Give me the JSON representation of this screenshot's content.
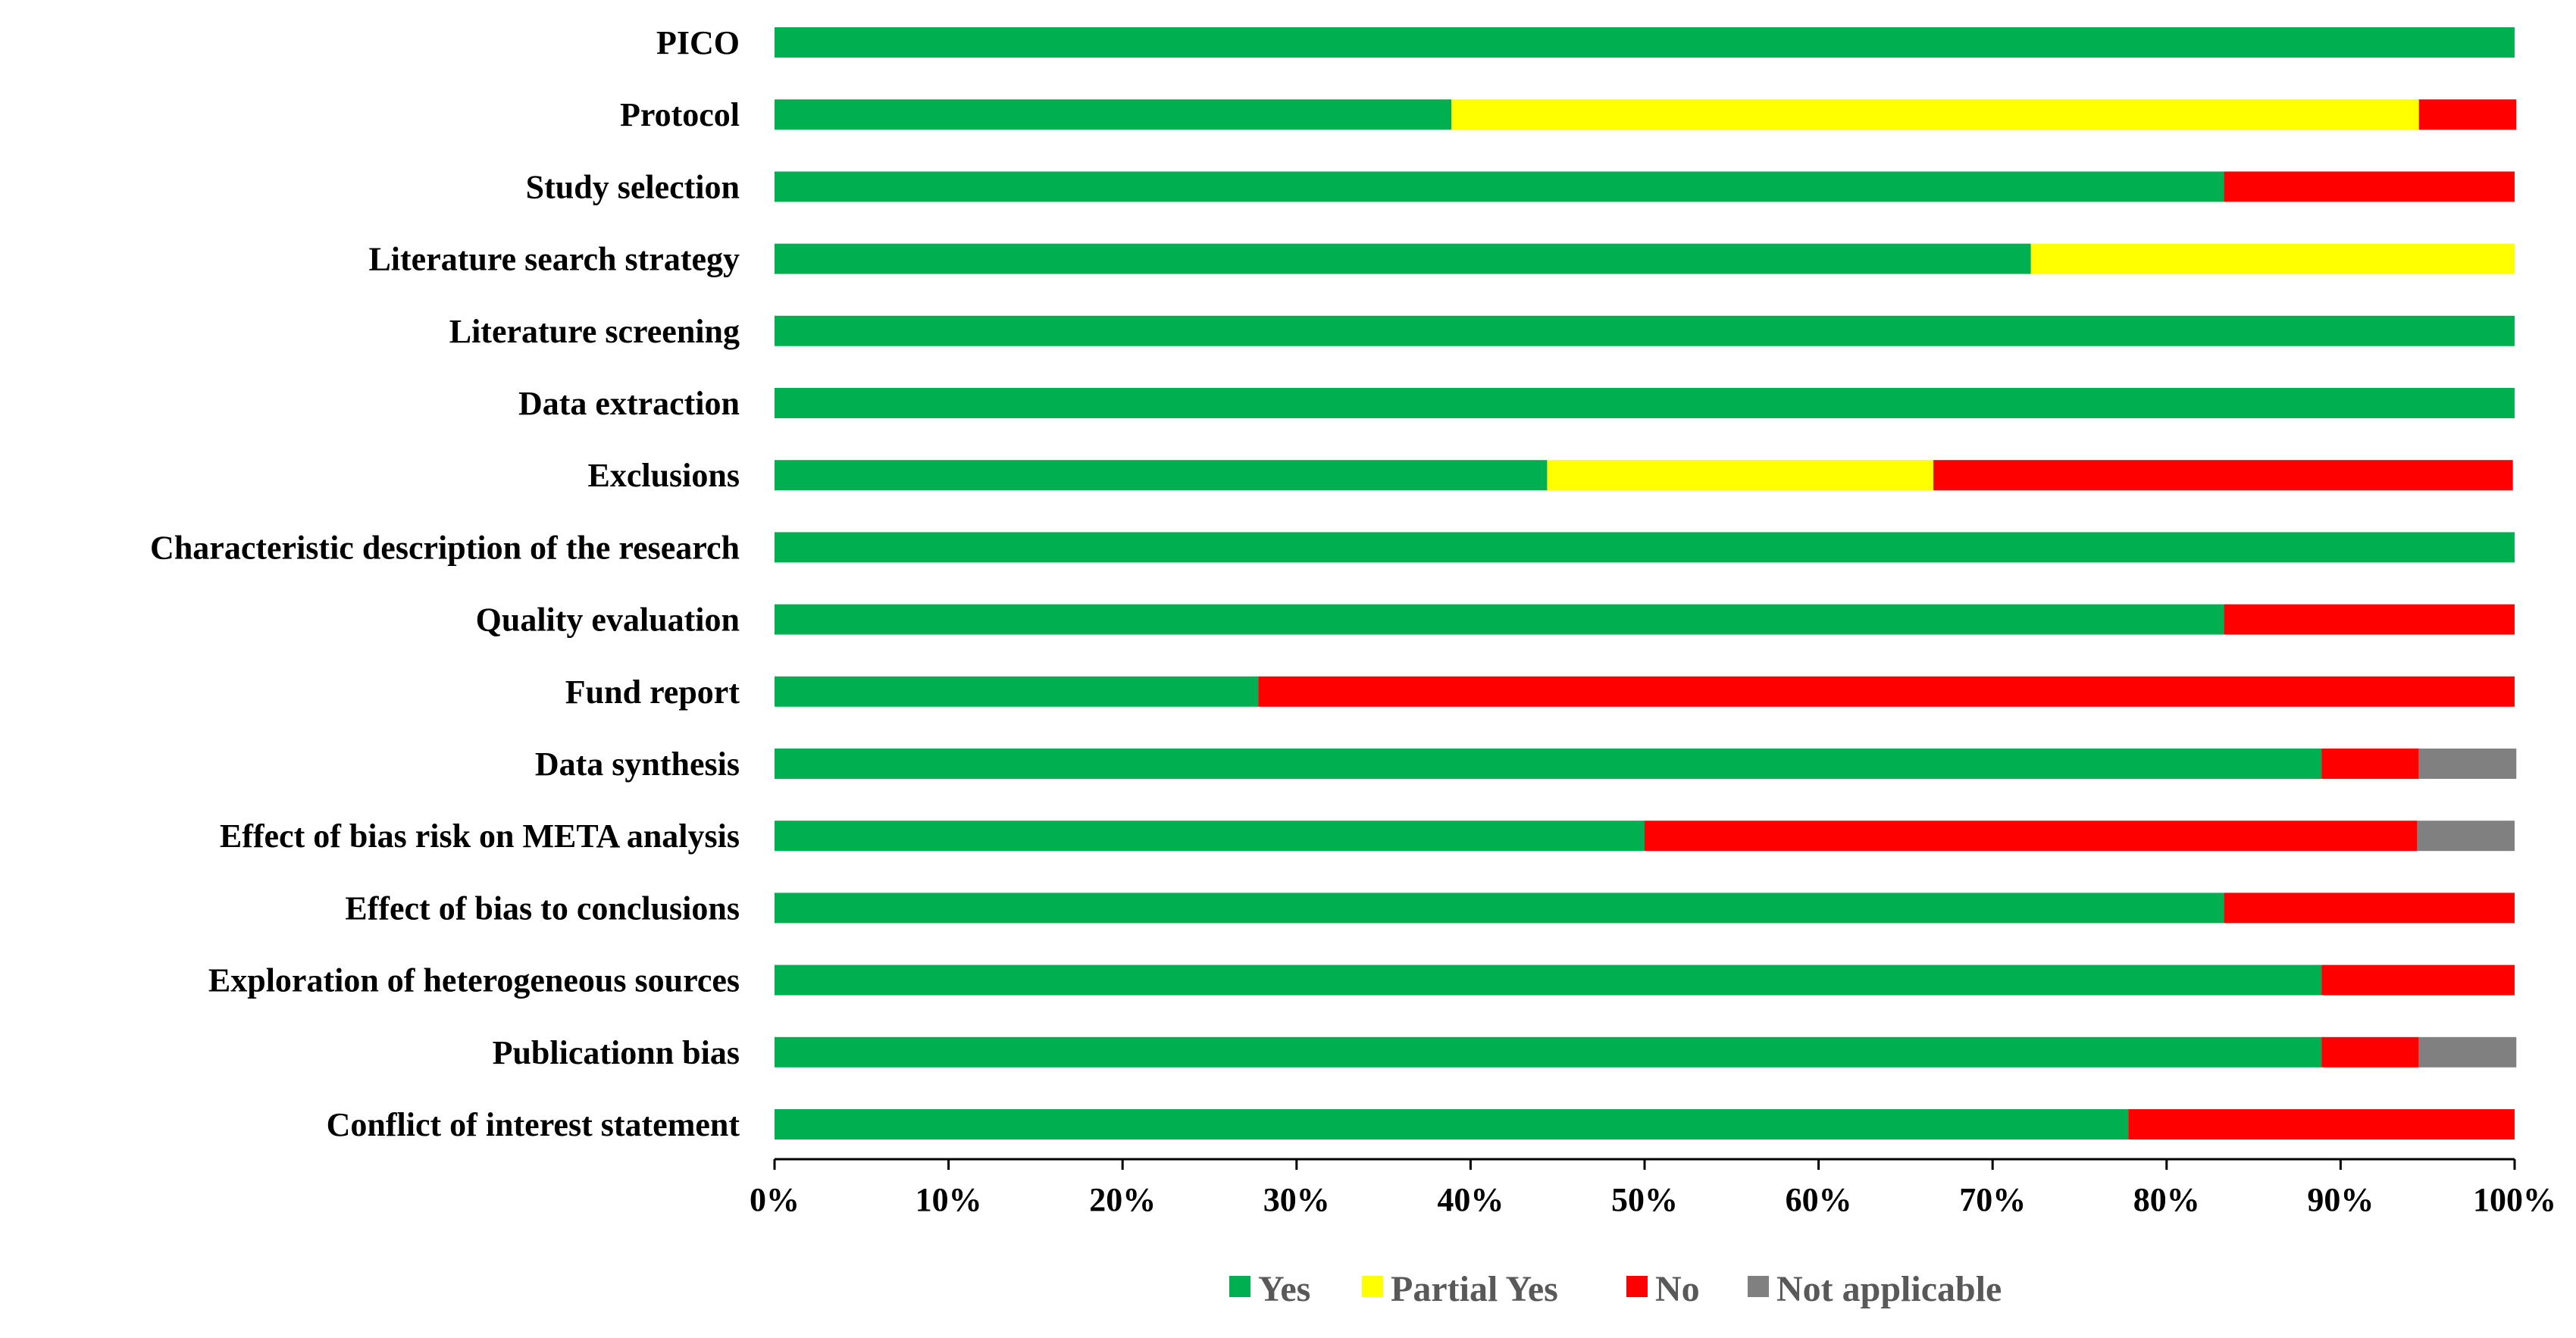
{
  "chart_data": {
    "type": "bar",
    "orientation": "horizontal",
    "stacked": "percent",
    "title": "",
    "xlabel": "",
    "ylabel": "",
    "xlim": [
      0,
      100
    ],
    "x_ticks": [
      "0%",
      "10%",
      "20%",
      "30%",
      "40%",
      "50%",
      "60%",
      "70%",
      "80%",
      "90%",
      "100%"
    ],
    "grid": false,
    "legend_position": "bottom",
    "categories": [
      "PICO",
      "Protocol",
      "Study selection",
      "Literature search strategy",
      "Literature screening",
      "Data extraction",
      "Exclusions",
      "Characteristic description of the research",
      "Quality evaluation",
      "Fund report",
      "Data synthesis",
      "Effect of bias risk on META analysis",
      "Effect of bias to conclusions",
      "Exploration of heterogeneous sources",
      "Publicationn bias",
      "Conflict of interest statement"
    ],
    "series": [
      {
        "name": "Yes",
        "color": "#00B050",
        "values": [
          100,
          38.9,
          83.3,
          72.2,
          100,
          100,
          44.4,
          100,
          83.3,
          27.8,
          88.9,
          50.0,
          83.3,
          88.9,
          88.9,
          77.8
        ]
      },
      {
        "name": "Partial Yes",
        "color": "#FFFF00",
        "values": [
          0,
          55.6,
          0,
          27.8,
          0,
          0,
          22.2,
          0,
          0,
          0,
          0,
          0,
          0,
          0,
          0,
          0
        ]
      },
      {
        "name": "No",
        "color": "#FF0000",
        "values": [
          0,
          5.6,
          16.7,
          0,
          0,
          0,
          33.3,
          0,
          16.7,
          72.2,
          5.6,
          44.4,
          16.7,
          11.1,
          5.6,
          22.2
        ]
      },
      {
        "name": "Not applicable",
        "color": "#808080",
        "values": [
          0,
          0,
          0,
          0,
          0,
          0,
          0,
          0,
          0,
          0,
          5.6,
          5.6,
          0,
          0,
          5.6,
          0
        ]
      }
    ]
  }
}
